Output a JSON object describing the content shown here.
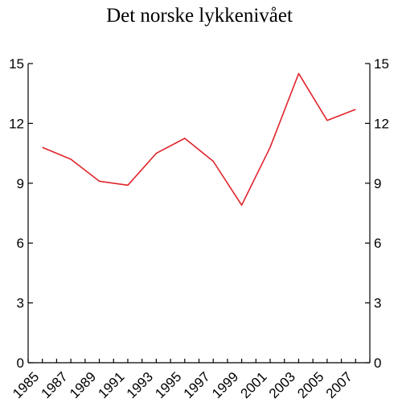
{
  "chart_data": {
    "type": "line",
    "title": "Det norske lykkenivået",
    "xlabel": "",
    "ylabel": "",
    "x_tick_labels": [
      "1985",
      "1987",
      "1989",
      "1991",
      "1993",
      "1995",
      "1997",
      "1999",
      "2001",
      "2003",
      "2005",
      "2007"
    ],
    "y_ticks": [
      0,
      3,
      6,
      9,
      12,
      15
    ],
    "ylim": [
      0,
      15
    ],
    "xlim": [
      1985,
      2009
    ],
    "grid": false,
    "secondary_y_axis": true,
    "series": [
      {
        "color": "#e0242b",
        "x": [
          1986,
          1988,
          1990,
          1992,
          1994,
          1996,
          1998,
          2000,
          2002,
          2004,
          2006,
          2008
        ],
        "values": [
          10.8,
          10.2,
          9.1,
          8.9,
          10.5,
          11.25,
          10.1,
          7.9,
          10.8,
          14.5,
          12.15,
          12.7
        ]
      }
    ]
  }
}
